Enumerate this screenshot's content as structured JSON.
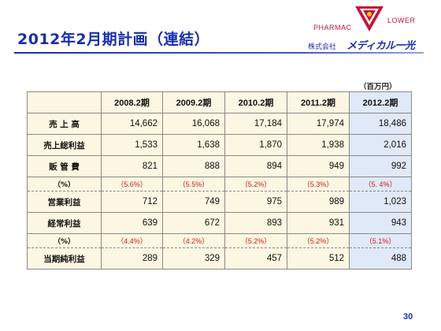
{
  "title": "2012年2月期計画（連結）",
  "logo": {
    "pharmac": "PHARMAC",
    "flower": "LOWER",
    "company_prefix": "株式会社",
    "brand": "メディカル一光"
  },
  "unit": "（百万円）",
  "table": {
    "columns": [
      "2008.2期",
      "2009.2期",
      "2010.2期",
      "2011.2期",
      "2012.2期"
    ],
    "rows": [
      {
        "label": "売 上 高",
        "values": [
          "14,662",
          "16,068",
          "17,184",
          "17,974",
          "18,486"
        ]
      },
      {
        "label": "売上総利益",
        "values": [
          "1,533",
          "1,638",
          "1,870",
          "1,938",
          "2,016"
        ]
      },
      {
        "label": "販 管 費",
        "values": [
          "821",
          "888",
          "894",
          "949",
          "992"
        ]
      },
      {
        "label": "（%）",
        "values": [
          "（5.6%）",
          "（5.5%）",
          "（5.2%）",
          "（5.3%）",
          "（5. 4%）"
        ]
      },
      {
        "label": "営業利益",
        "values": [
          "712",
          "749",
          "975",
          "989",
          "1,023"
        ]
      },
      {
        "label": "経常利益",
        "values": [
          "639",
          "672",
          "893",
          "931",
          "943"
        ]
      },
      {
        "label": "（%）",
        "values": [
          "（4.4%）",
          "（4.2%）",
          "（5.2%）",
          "（5.2%）",
          "（5.1%）"
        ]
      },
      {
        "label": "当期純利益",
        "values": [
          "289",
          "329",
          "457",
          "512",
          "488"
        ]
      }
    ]
  },
  "page_number": "30",
  "colors": {
    "title": "#1a2fa8",
    "percent_text": "#d01a1a",
    "table_bg": "#fbf7e2",
    "highlight_col": "#dfe9f7",
    "logo_red": "#c0183a"
  }
}
